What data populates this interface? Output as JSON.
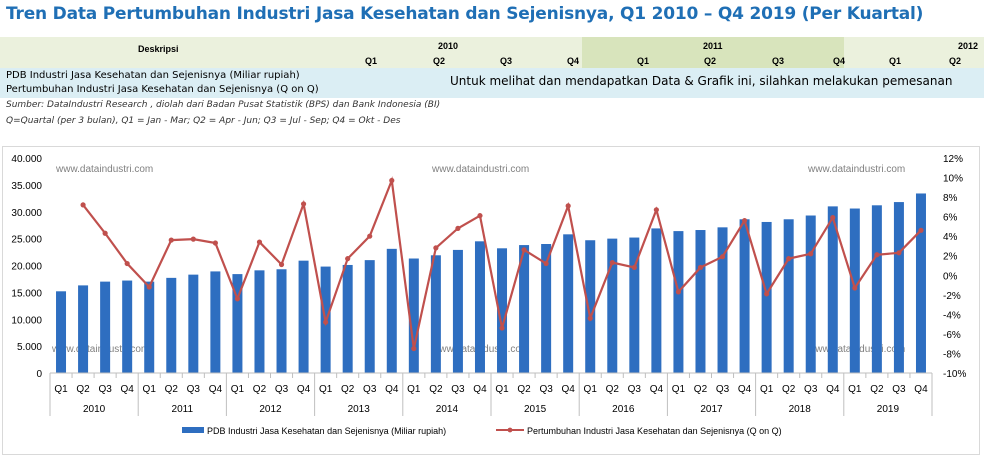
{
  "header": {
    "title": "Tren Data Pertumbuhan Industri Jasa Kesehatan dan Sejenisnya, Q1 2010 – Q4 2019 (Per Kuartal)"
  },
  "table": {
    "desc_label": "Deskripsi",
    "years": [
      "2010",
      "2011",
      "2012"
    ],
    "quarters": [
      "Q1",
      "Q2",
      "Q3",
      "Q4",
      "Q1",
      "Q2",
      "Q3",
      "Q4",
      "Q1",
      "Q2"
    ],
    "rows": [
      "PDB Industri Jasa Kesehatan dan Sejenisnya (Miliar rupiah)",
      "Pertumbuhan Industri Jasa Kesehatan dan Sejenisnya (Q on Q)"
    ],
    "notice": "Untuk melihat dan mendapatkan Data & Grafik ini, silahkan melakukan pemesanan",
    "source": "Sumber: DataIndustri Research , diolah dari Badan Pusat Statistik (BPS) dan Bank Indonesia (BI)",
    "quarter_note": "Q=Quartal (per 3 bulan), Q1 = Jan - Mar; Q2 = Apr - Jun; Q3 = Jul - Sep; Q4 = Okt - Des"
  },
  "watermark": "www.dataindustri.com",
  "colors": {
    "bar": "#2e6ec0",
    "line": "#c0504d",
    "title": "#1f6fb5"
  },
  "chart_data": {
    "type": "bar",
    "categories": [
      "Q1",
      "Q2",
      "Q3",
      "Q4",
      "Q1",
      "Q2",
      "Q3",
      "Q4",
      "Q1",
      "Q2",
      "Q3",
      "Q4",
      "Q1",
      "Q2",
      "Q3",
      "Q4",
      "Q1",
      "Q2",
      "Q3",
      "Q4",
      "Q1",
      "Q2",
      "Q3",
      "Q4",
      "Q1",
      "Q2",
      "Q3",
      "Q4",
      "Q1",
      "Q2",
      "Q3",
      "Q4",
      "Q1",
      "Q2",
      "Q3",
      "Q4",
      "Q1",
      "Q2",
      "Q3",
      "Q4"
    ],
    "years": [
      "2010",
      "2011",
      "2012",
      "2013",
      "2014",
      "2015",
      "2016",
      "2017",
      "2018",
      "2019"
    ],
    "series": [
      {
        "name": "PDB Industri Jasa Kesehatan dan Sejenisnya (Miliar rupiah)",
        "kind": "bar",
        "axis": "left",
        "values": [
          15200,
          16300,
          17000,
          17200,
          17000,
          17700,
          18300,
          18900,
          18400,
          19100,
          19300,
          20900,
          19800,
          20100,
          21000,
          23100,
          21300,
          21900,
          22900,
          24500,
          23200,
          23800,
          24000,
          25800,
          24700,
          25000,
          25200,
          26900,
          26400,
          26600,
          27100,
          28600,
          28100,
          28600,
          29300,
          31000,
          30600,
          31200,
          31800,
          33400
        ]
      },
      {
        "name": "Pertumbuhan Industri Jasa Kesehatan dan Sejenisnya (Q on Q)",
        "kind": "line",
        "axis": "right",
        "values": [
          null,
          7.2,
          4.3,
          1.2,
          -1.2,
          3.6,
          3.7,
          3.3,
          -2.4,
          3.4,
          1.1,
          7.3,
          -4.8,
          1.7,
          4.0,
          9.7,
          -7.5,
          2.8,
          4.8,
          6.1,
          -5.4,
          2.6,
          1.2,
          7.1,
          -4.4,
          1.3,
          0.8,
          6.7,
          -1.7,
          0.8,
          1.9,
          5.6,
          -1.9,
          1.7,
          2.2,
          5.9,
          -1.3,
          2.1,
          2.3,
          4.6
        ]
      }
    ],
    "ylim_left": [
      0,
      40000
    ],
    "yticks_left": [
      "0",
      "5.000",
      "10.000",
      "15.000",
      "20.000",
      "25.000",
      "30.000",
      "35.000",
      "40.000"
    ],
    "ylim_right": [
      -10,
      12
    ],
    "yticks_right": [
      "-10%",
      "-8%",
      "-6%",
      "-4%",
      "-2%",
      "0%",
      "2%",
      "4%",
      "6%",
      "8%",
      "10%",
      "12%"
    ],
    "legend": "bottom"
  }
}
